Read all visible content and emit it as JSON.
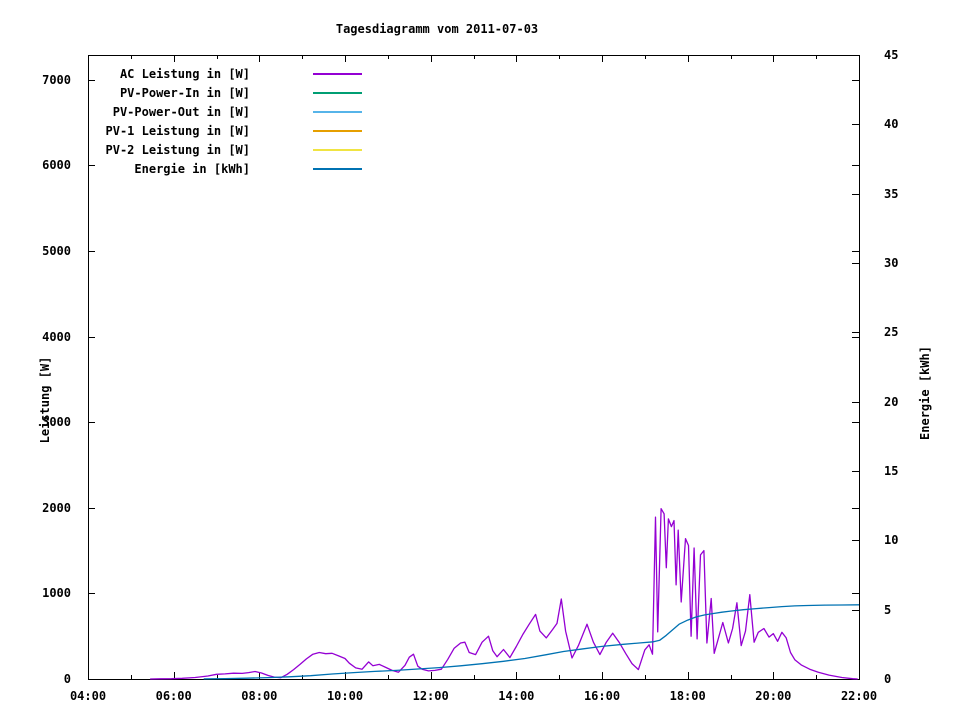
{
  "title": "Tagesdiagramm vom 2011-07-03",
  "chart_data": {
    "type": "line",
    "x_unit": "hour-of-day",
    "grid": false,
    "legend_position": "top-left-inside",
    "background_color": "#ffffff",
    "axis_color": "#000000",
    "axes": {
      "x": {
        "min": 4,
        "max": 22,
        "major_tick_hours": 2,
        "minor_tick_hours": 1,
        "minor_hours": [
          5,
          7,
          9,
          11,
          13,
          15,
          17,
          19,
          21
        ],
        "ticks": [
          {
            "value": 4,
            "label": "04:00"
          },
          {
            "value": 6,
            "label": "06:00"
          },
          {
            "value": 8,
            "label": "08:00"
          },
          {
            "value": 10,
            "label": "10:00"
          },
          {
            "value": 12,
            "label": "12:00"
          },
          {
            "value": 14,
            "label": "14:00"
          },
          {
            "value": 16,
            "label": "16:00"
          },
          {
            "value": 18,
            "label": "18:00"
          },
          {
            "value": 20,
            "label": "20:00"
          },
          {
            "value": 22,
            "label": "22:00"
          }
        ]
      },
      "y1": {
        "label": "Leistung [W]",
        "min": 0,
        "max": 7290,
        "ticks": [
          {
            "value": 0,
            "label": "0"
          },
          {
            "value": 1000,
            "label": "1000"
          },
          {
            "value": 2000,
            "label": "2000"
          },
          {
            "value": 3000,
            "label": "3000"
          },
          {
            "value": 4000,
            "label": "4000"
          },
          {
            "value": 5000,
            "label": "5000"
          },
          {
            "value": 6000,
            "label": "6000"
          },
          {
            "value": 7000,
            "label": "7000"
          }
        ]
      },
      "y2": {
        "label": "Energie [kWh]",
        "min": 0,
        "max": 45,
        "ticks": [
          {
            "value": 0,
            "label": "0"
          },
          {
            "value": 5,
            "label": "5"
          },
          {
            "value": 10,
            "label": "10"
          },
          {
            "value": 15,
            "label": "15"
          },
          {
            "value": 20,
            "label": "20"
          },
          {
            "value": 25,
            "label": "25"
          },
          {
            "value": 30,
            "label": "30"
          },
          {
            "value": 35,
            "label": "35"
          },
          {
            "value": 40,
            "label": "40"
          },
          {
            "value": 45,
            "label": "45"
          }
        ]
      }
    },
    "series": [
      {
        "name": "AC Leistung in [W]",
        "color": "#9400d3",
        "axis": "y1",
        "points": [
          [
            5.45,
            0
          ],
          [
            5.7,
            2
          ],
          [
            5.95,
            3
          ],
          [
            6.2,
            8
          ],
          [
            6.5,
            18
          ],
          [
            6.8,
            35
          ],
          [
            7.0,
            55
          ],
          [
            7.2,
            60
          ],
          [
            7.4,
            68
          ],
          [
            7.6,
            65
          ],
          [
            7.75,
            75
          ],
          [
            7.9,
            88
          ],
          [
            8.05,
            70
          ],
          [
            8.2,
            42
          ],
          [
            8.35,
            22
          ],
          [
            8.5,
            15
          ],
          [
            8.65,
            55
          ],
          [
            8.8,
            110
          ],
          [
            8.95,
            170
          ],
          [
            9.1,
            235
          ],
          [
            9.25,
            290
          ],
          [
            9.4,
            310
          ],
          [
            9.55,
            295
          ],
          [
            9.7,
            300
          ],
          [
            9.85,
            270
          ],
          [
            10.0,
            240
          ],
          [
            10.1,
            185
          ],
          [
            10.25,
            130
          ],
          [
            10.4,
            115
          ],
          [
            10.55,
            200
          ],
          [
            10.65,
            155
          ],
          [
            10.8,
            170
          ],
          [
            10.95,
            135
          ],
          [
            11.1,
            100
          ],
          [
            11.25,
            80
          ],
          [
            11.4,
            160
          ],
          [
            11.5,
            255
          ],
          [
            11.6,
            290
          ],
          [
            11.7,
            150
          ],
          [
            11.8,
            115
          ],
          [
            11.95,
            95
          ],
          [
            12.1,
            100
          ],
          [
            12.25,
            115
          ],
          [
            12.4,
            230
          ],
          [
            12.55,
            360
          ],
          [
            12.7,
            420
          ],
          [
            12.8,
            430
          ],
          [
            12.9,
            310
          ],
          [
            13.05,
            285
          ],
          [
            13.2,
            430
          ],
          [
            13.35,
            500
          ],
          [
            13.45,
            330
          ],
          [
            13.55,
            260
          ],
          [
            13.7,
            345
          ],
          [
            13.85,
            250
          ],
          [
            14.0,
            380
          ],
          [
            14.15,
            520
          ],
          [
            14.3,
            640
          ],
          [
            14.45,
            755
          ],
          [
            14.55,
            560
          ],
          [
            14.7,
            480
          ],
          [
            14.85,
            580
          ],
          [
            14.95,
            650
          ],
          [
            15.05,
            935
          ],
          [
            15.15,
            560
          ],
          [
            15.3,
            245
          ],
          [
            15.45,
            390
          ],
          [
            15.65,
            640
          ],
          [
            15.8,
            430
          ],
          [
            15.95,
            285
          ],
          [
            16.1,
            430
          ],
          [
            16.25,
            535
          ],
          [
            16.4,
            430
          ],
          [
            16.55,
            300
          ],
          [
            16.7,
            180
          ],
          [
            16.85,
            110
          ],
          [
            17.0,
            340
          ],
          [
            17.1,
            400
          ],
          [
            17.18,
            290
          ],
          [
            17.25,
            1890
          ],
          [
            17.3,
            550
          ],
          [
            17.38,
            1990
          ],
          [
            17.45,
            1930
          ],
          [
            17.5,
            1300
          ],
          [
            17.55,
            1870
          ],
          [
            17.62,
            1780
          ],
          [
            17.68,
            1850
          ],
          [
            17.73,
            1100
          ],
          [
            17.78,
            1740
          ],
          [
            17.85,
            900
          ],
          [
            17.95,
            1640
          ],
          [
            18.02,
            1560
          ],
          [
            18.08,
            500
          ],
          [
            18.15,
            1530
          ],
          [
            18.22,
            470
          ],
          [
            18.3,
            1450
          ],
          [
            18.38,
            1500
          ],
          [
            18.45,
            420
          ],
          [
            18.55,
            940
          ],
          [
            18.62,
            300
          ],
          [
            18.72,
            480
          ],
          [
            18.82,
            660
          ],
          [
            18.95,
            420
          ],
          [
            19.05,
            590
          ],
          [
            19.15,
            890
          ],
          [
            19.25,
            390
          ],
          [
            19.35,
            560
          ],
          [
            19.45,
            985
          ],
          [
            19.55,
            430
          ],
          [
            19.65,
            545
          ],
          [
            19.78,
            590
          ],
          [
            19.9,
            490
          ],
          [
            20.0,
            530
          ],
          [
            20.1,
            440
          ],
          [
            20.2,
            545
          ],
          [
            20.3,
            480
          ],
          [
            20.4,
            310
          ],
          [
            20.5,
            225
          ],
          [
            20.65,
            165
          ],
          [
            20.85,
            115
          ],
          [
            21.05,
            80
          ],
          [
            21.3,
            45
          ],
          [
            21.6,
            18
          ],
          [
            21.85,
            4
          ],
          [
            21.97,
            0
          ]
        ]
      },
      {
        "name": "PV-Power-In in [W]",
        "color": "#009e73",
        "axis": "y1",
        "points": []
      },
      {
        "name": "PV-Power-Out in [W]",
        "color": "#56b4e9",
        "axis": "y1",
        "points": []
      },
      {
        "name": "PV-1 Leistung in [W]",
        "color": "#e69f00",
        "axis": "y1",
        "points": []
      },
      {
        "name": "PV-2 Leistung in [W]",
        "color": "#f0e442",
        "axis": "y1",
        "points": []
      },
      {
        "name": "Energie in [kWh]",
        "color": "#0072b2",
        "axis": "y2",
        "points": [
          [
            6.7,
            0.01
          ],
          [
            7.2,
            0.03
          ],
          [
            7.7,
            0.06
          ],
          [
            8.2,
            0.1
          ],
          [
            8.7,
            0.16
          ],
          [
            9.2,
            0.24
          ],
          [
            9.7,
            0.36
          ],
          [
            10.2,
            0.46
          ],
          [
            10.7,
            0.55
          ],
          [
            11.2,
            0.62
          ],
          [
            11.7,
            0.72
          ],
          [
            12.2,
            0.82
          ],
          [
            12.7,
            0.95
          ],
          [
            13.2,
            1.1
          ],
          [
            13.7,
            1.28
          ],
          [
            14.2,
            1.48
          ],
          [
            14.7,
            1.75
          ],
          [
            15.1,
            1.98
          ],
          [
            15.5,
            2.15
          ],
          [
            16.0,
            2.35
          ],
          [
            16.5,
            2.5
          ],
          [
            16.9,
            2.6
          ],
          [
            17.2,
            2.68
          ],
          [
            17.35,
            2.8
          ],
          [
            17.5,
            3.15
          ],
          [
            17.65,
            3.55
          ],
          [
            17.8,
            3.95
          ],
          [
            18.0,
            4.25
          ],
          [
            18.2,
            4.48
          ],
          [
            18.4,
            4.62
          ],
          [
            18.6,
            4.72
          ],
          [
            18.8,
            4.82
          ],
          [
            19.0,
            4.9
          ],
          [
            19.3,
            5.0
          ],
          [
            19.6,
            5.08
          ],
          [
            19.9,
            5.15
          ],
          [
            20.2,
            5.22
          ],
          [
            20.5,
            5.27
          ],
          [
            20.8,
            5.3
          ],
          [
            21.2,
            5.33
          ],
          [
            21.6,
            5.34
          ],
          [
            22.0,
            5.35
          ]
        ]
      }
    ]
  }
}
